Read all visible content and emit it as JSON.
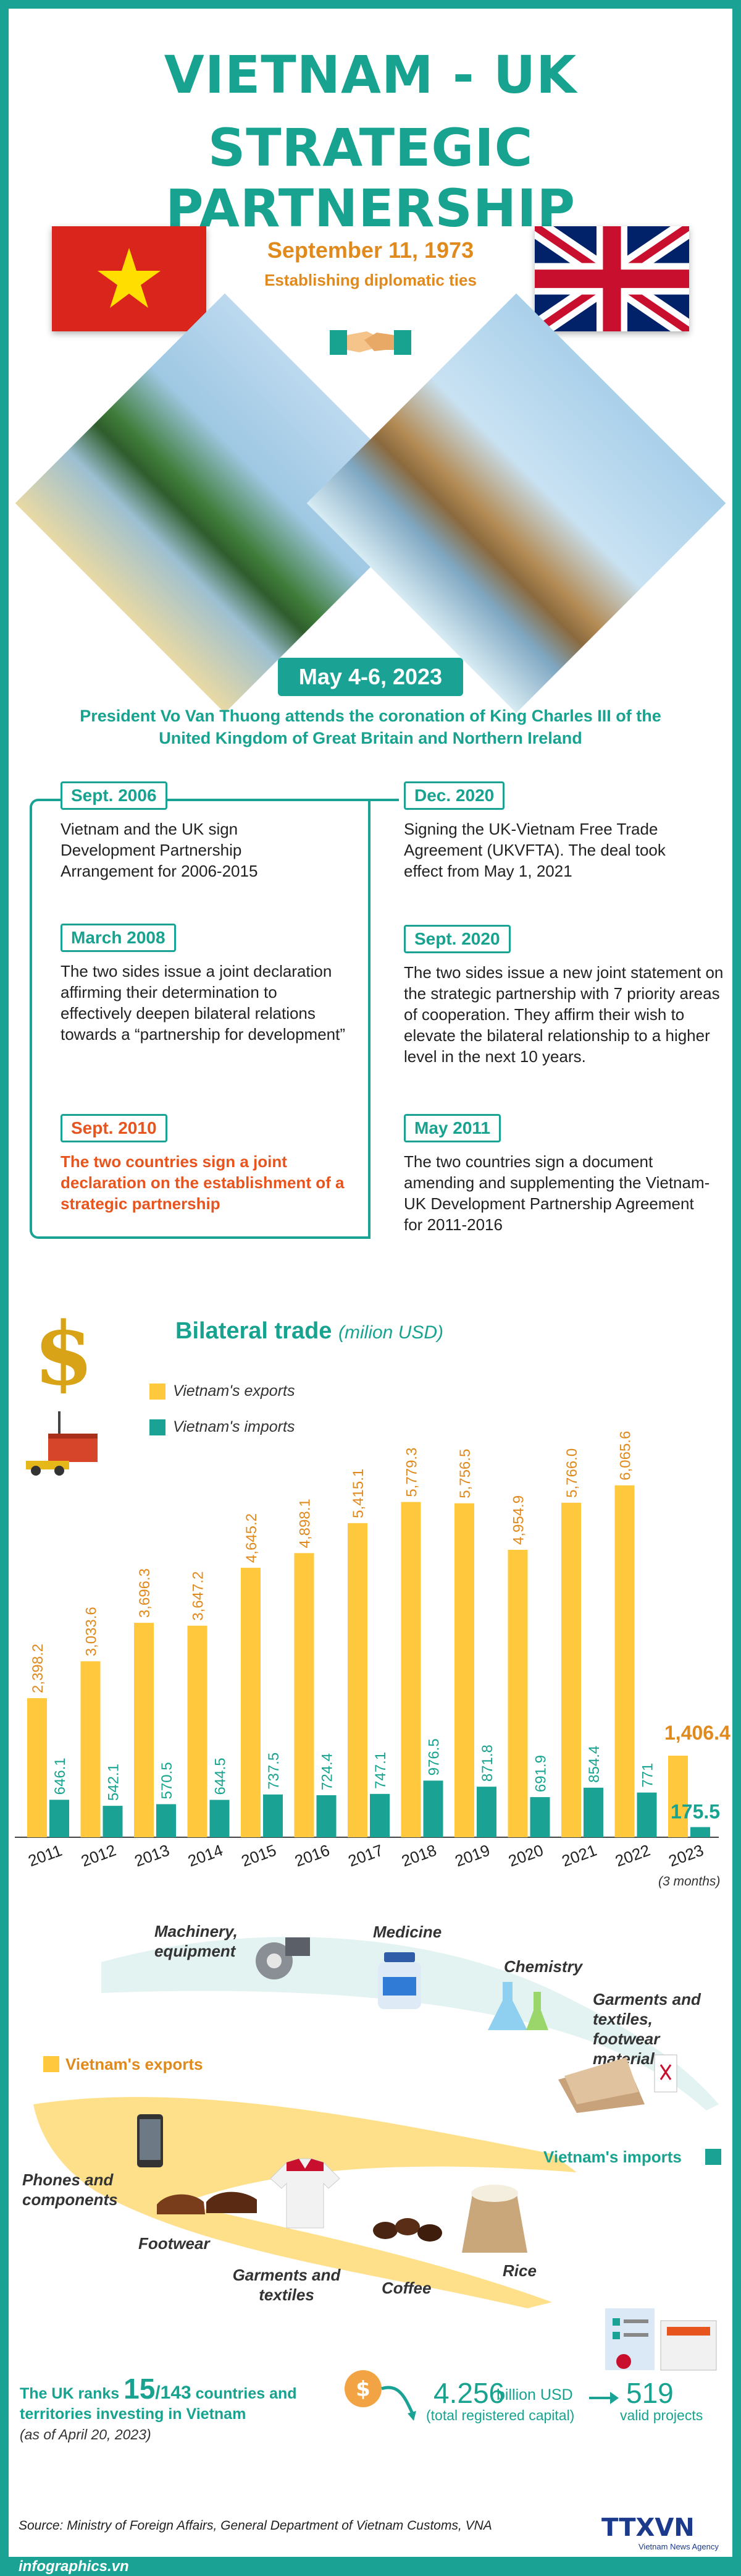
{
  "header": {
    "title_line1": "VIETNAM - UK",
    "title_line2": "STRATEGIC PARTNERSHIP",
    "date": "September 11, 1973",
    "date_caption": "Establishing diplomatic ties"
  },
  "visit": {
    "date": "May 4-6, 2023",
    "text": "President Vo Van Thuong attends the coronation of King Charles III of the United Kingdom of Great Britain and Northern Ireland"
  },
  "timeline_left": [
    {
      "date": "Sept. 2006",
      "text": "Vietnam and the UK sign Development Partnership Arrangement for 2006-2015"
    },
    {
      "date": "March 2008",
      "text": "The two sides issue a joint declaration affirming their determination to effectively deepen bilateral relations towards a “partnership for development”"
    },
    {
      "date": "Sept. 2010",
      "text": "The two countries sign a joint declaration on the establishment of a strategic partnership"
    }
  ],
  "timeline_right": [
    {
      "date": "Dec. 2020",
      "text": "Signing the UK-Vietnam Free Trade Agreement (UKVFTA). The deal took effect from May 1, 2021"
    },
    {
      "date": "Sept. 2020",
      "text": "The two sides issue a new joint statement on the strategic partnership with 7 priority areas of cooperation. They affirm their wish to elevate the bilateral relationship to a higher level in the next 10 years."
    },
    {
      "date": "May 2011",
      "text": "The two countries sign a document amending and supplementing the Vietnam-UK Development Partnership Agreement for 2011-2016"
    }
  ],
  "trade": {
    "title": "Bilateral trade",
    "unit": "(milion USD)",
    "legend_exports": "Vietnam's exports",
    "legend_imports": "Vietnam's imports",
    "note_2023": "(3 months)"
  },
  "chart_data": {
    "type": "bar",
    "title": "Bilateral trade",
    "categories": [
      "2011",
      "2012",
      "2013",
      "2014",
      "2015",
      "2016",
      "2017",
      "2018",
      "2019",
      "2020",
      "2021",
      "2022",
      "2023"
    ],
    "series": [
      {
        "name": "Vietnam's exports",
        "color": "#ffc83d",
        "values": [
          2398.2,
          3033.6,
          3696.3,
          3647.2,
          4645.2,
          4898.1,
          5415.1,
          5779.3,
          5756.5,
          4954.9,
          5766.0,
          6065.6,
          1406.4
        ],
        "labels": [
          "2,398.2",
          "3,033.6",
          "3,696.3",
          "3,647.2",
          "4,645.2",
          "4,898.1",
          "5,415.1",
          "5,779.3",
          "5,756.5",
          "4,954.9",
          "5,766.0",
          "6,065.6",
          "1,406.4"
        ]
      },
      {
        "name": "Vietnam's imports",
        "color": "#1aa394",
        "values": [
          646.1,
          542.1,
          570.5,
          644.5,
          737.5,
          724.4,
          747.1,
          976.5,
          871.8,
          691.9,
          854.4,
          771,
          175.5
        ],
        "labels": [
          "646.1",
          "542.1",
          "570.5",
          "644.5",
          "737.5",
          "724.4",
          "747.1",
          "976.5",
          "871.8",
          "691.9",
          "854.4",
          "771",
          "175.5"
        ]
      }
    ],
    "ylim": [
      0,
      6500
    ]
  },
  "goods": {
    "imports_label": "Vietnam's imports",
    "exports_label": "Vietnam's exports",
    "imports": [
      "Machinery, equipment",
      "Medicine",
      "Chemistry",
      "Garments and textiles, footwear materials"
    ],
    "exports": [
      "Phones and components",
      "Footwear",
      "Garments and textiles",
      "Coffee",
      "Rice"
    ]
  },
  "investment": {
    "rank_prefix": "The UK ranks",
    "rank": "15",
    "rank_total": "/143",
    "rank_suffix": "countries and territories investing in Vietnam",
    "as_of": "(as of April 20, 2023)",
    "capital_value": "4.256",
    "capital_unit": "billion USD",
    "capital_desc": "(total registered capital)",
    "projects_value": "519",
    "projects_desc": "valid projects"
  },
  "footer": {
    "source": "Source: Ministry of Foreign Affairs, General Department of Vietnam Customs, VNA",
    "site": "infographics.vn",
    "logo": "TTXVN",
    "logo_sub": "Vietnam News Agency"
  },
  "colors": {
    "teal": "#1aa394",
    "orange": "#e08a1e",
    "yellow": "#ffc83d",
    "red": "#e8541e"
  }
}
